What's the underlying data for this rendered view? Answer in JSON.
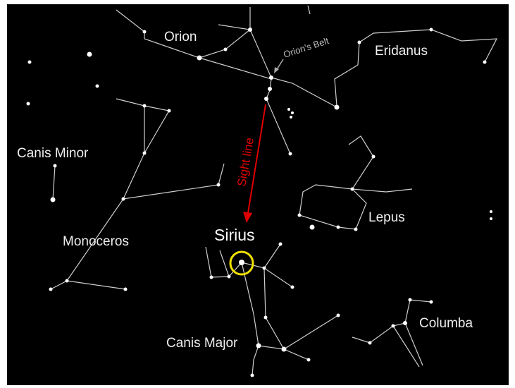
{
  "labels": {
    "orion": "Orion",
    "orions_belt": "Orion's Belt",
    "eridanus": "Eridanus",
    "canis_minor": "Canis Minor",
    "sight_line": "Sight line",
    "monoceros": "Monoceros",
    "sirius": "Sirius",
    "lepus": "Lepus",
    "canis_major": "Canis Major",
    "columba": "Columba"
  }
}
